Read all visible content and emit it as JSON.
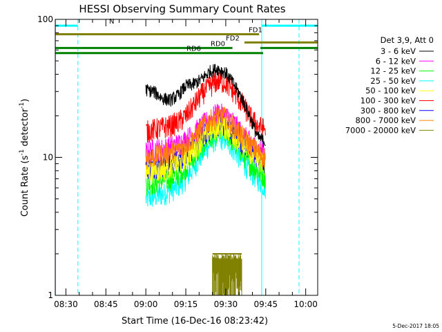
{
  "chart_data": {
    "type": "line",
    "title": "HESSI Observing Summary Count Rates",
    "xlabel": "Start Time (16-Dec-16 08:23:42)",
    "ylabel_main": "Count Rate (s",
    "ylabel_sup1": "-1",
    "ylabel_mid": " detector",
    "ylabel_sup2": "-1",
    "ylabel_end": ")",
    "yscale": "log",
    "ylim": [
      1,
      100
    ],
    "xlim_minutes": [
      506.0,
      604.5
    ],
    "x_ticks": [
      {
        "label": "08:30",
        "minutes": 510
      },
      {
        "label": "08:45",
        "minutes": 525
      },
      {
        "label": "09:00",
        "minutes": 540
      },
      {
        "label": "09:15",
        "minutes": 555
      },
      {
        "label": "09:30",
        "minutes": 570
      },
      {
        "label": "09:45",
        "minutes": 585
      },
      {
        "label": "10:00",
        "minutes": 600
      }
    ],
    "y_ticks": [
      {
        "label": "1",
        "value": 1
      },
      {
        "label": "10",
        "value": 10
      },
      {
        "label": "100",
        "value": 100
      }
    ],
    "legend_title": "Det 3,9, Att 0",
    "legend_placement": "right",
    "series": [
      {
        "name": "3 - 6 keV",
        "color": "#000000",
        "x": [
          540,
          543,
          546,
          549,
          552,
          555,
          558,
          561,
          564,
          567,
          570,
          573,
          576,
          579,
          582,
          585
        ],
        "values": [
          31,
          30,
          27,
          26,
          28,
          33,
          34,
          37,
          42,
          44,
          41,
          34,
          27,
          20,
          14,
          13
        ]
      },
      {
        "name": "6 - 12 keV",
        "color": "#ff00ff",
        "x": [
          540,
          543,
          546,
          549,
          552,
          555,
          558,
          561,
          564,
          567,
          570,
          573,
          576,
          579,
          582,
          585
        ],
        "values": [
          11,
          11.5,
          11.5,
          12,
          12.5,
          13.5,
          15,
          17,
          19,
          21,
          20,
          18,
          15,
          13,
          11.5,
          11
        ]
      },
      {
        "name": "12 - 25 keV",
        "color": "#00ff00",
        "x": [
          540,
          543,
          546,
          549,
          552,
          555,
          558,
          561,
          564,
          567,
          570,
          573,
          576,
          579,
          582,
          585
        ],
        "values": [
          6.5,
          6.5,
          6.8,
          7,
          7.5,
          8.5,
          10,
          12,
          14,
          15.5,
          15,
          13,
          11,
          9,
          8,
          7.2
        ]
      },
      {
        "name": "25 - 50 keV",
        "color": "#00ffff",
        "x": [
          540,
          543,
          546,
          549,
          552,
          555,
          558,
          561,
          564,
          567,
          570,
          573,
          576,
          579,
          582,
          585
        ],
        "values": [
          5,
          5.2,
          5.4,
          5.7,
          6.2,
          7,
          8.5,
          10.5,
          12.5,
          14,
          13.5,
          11.5,
          9.5,
          8,
          7,
          6
        ]
      },
      {
        "name": "50 - 100 keV",
        "color": "#ffff00",
        "x": [
          540,
          543,
          546,
          549,
          552,
          555,
          558,
          561,
          564,
          567,
          570,
          573,
          576,
          579,
          582,
          585
        ],
        "values": [
          8,
          8,
          8.2,
          8.5,
          9,
          10,
          11.5,
          13.5,
          15.5,
          17,
          16.5,
          14.5,
          12.5,
          11,
          10,
          9
        ]
      },
      {
        "name": "100 - 300 keV",
        "color": "#ff0000",
        "x": [
          540,
          543,
          546,
          549,
          552,
          555,
          558,
          561,
          564,
          567,
          570,
          573,
          576,
          579,
          582,
          585
        ],
        "values": [
          15.5,
          16,
          16.5,
          17,
          18,
          20,
          24,
          29,
          33,
          36,
          35,
          30,
          25,
          20,
          17,
          16
        ]
      },
      {
        "name": "300 - 800 keV",
        "color": "#0000ff",
        "x": [
          540,
          543,
          546,
          549,
          552,
          555,
          558,
          561,
          564,
          567,
          570,
          573,
          576,
          579,
          582,
          585
        ],
        "values": [
          8.5,
          8.6,
          8.8,
          9,
          9.5,
          10.5,
          12,
          14,
          16,
          17.5,
          17,
          15,
          13,
          11.5,
          10,
          9
        ]
      },
      {
        "name": "800 - 7000 keV",
        "color": "#ff8000",
        "x": [
          540,
          543,
          546,
          549,
          552,
          555,
          558,
          561,
          564,
          567,
          570,
          573,
          576,
          579,
          582,
          585
        ],
        "values": [
          10,
          10.2,
          10.5,
          11,
          11.5,
          12.5,
          14,
          16.5,
          18.5,
          20,
          19.5,
          17,
          14.5,
          12.5,
          11,
          10
        ]
      },
      {
        "name": "7000 - 20000 keV",
        "color": "#808000",
        "x": [
          565,
          566,
          567,
          568,
          569,
          570,
          571,
          572,
          573,
          574,
          575,
          576
        ],
        "values": [
          2,
          2,
          2,
          2,
          2,
          2,
          2,
          2,
          2,
          2,
          2,
          2
        ]
      }
    ],
    "flags": [
      {
        "label": "N",
        "color": "#00ffff",
        "segments": [
          [
            506,
            514.5
          ],
          [
            583.5,
            604.5
          ]
        ],
        "value": 90
      },
      {
        "label": "FD1",
        "color": "#808000",
        "segments": [
          [
            506,
            582.5
          ]
        ],
        "value": 78
      },
      {
        "label": "FD2",
        "color": "#808000",
        "segments": [
          [
            577,
            604.5
          ]
        ],
        "value": 68
      },
      {
        "label": "RD0",
        "color": "#008000",
        "segments": [
          [
            506,
            572.5
          ],
          [
            583,
            604.5
          ]
        ],
        "value": 62
      },
      {
        "label": "RD6",
        "color": "#008000",
        "segments": [
          [
            506,
            584
          ]
        ],
        "value": 57
      }
    ],
    "vlines": [
      {
        "minutes": 514.5,
        "color": "#00ffff",
        "style": "dashed"
      },
      {
        "minutes": 597.5,
        "color": "#00ffff",
        "style": "dashed"
      },
      {
        "minutes": 506.1,
        "color": "#00ffff",
        "style": "solid"
      },
      {
        "minutes": 583.5,
        "color": "#00ffff",
        "style": "solid"
      }
    ],
    "timestamp": "5-Dec-2017 18:05"
  }
}
